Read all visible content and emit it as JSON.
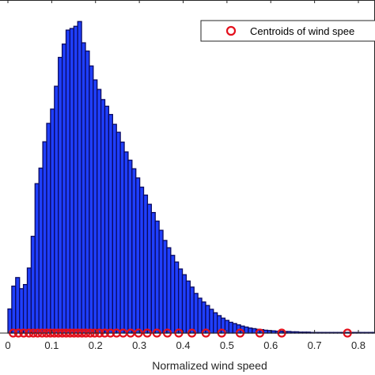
{
  "chart_data": {
    "type": "bar",
    "xlabel": "Normalized wind speed",
    "ylabel": "",
    "title": "",
    "xlim": [
      0,
      0.85
    ],
    "ylim": [
      0,
      1
    ],
    "x_ticks": [
      "0",
      "0.1",
      "0.2",
      "0.3",
      "0.4",
      "0.5",
      "0.6",
      "0.7",
      "0.8"
    ],
    "grid": false,
    "legend_position": "top-right",
    "bin_width": 0.00885,
    "bin_start": 0.0,
    "histogram_values": [
      0.076,
      0.148,
      0.175,
      0.14,
      0.153,
      0.205,
      0.305,
      0.471,
      0.52,
      0.603,
      0.661,
      0.706,
      0.778,
      0.869,
      0.911,
      0.955,
      0.96,
      0.967,
      0.982,
      0.915,
      0.889,
      0.842,
      0.798,
      0.768,
      0.736,
      0.715,
      0.689,
      0.658,
      0.633,
      0.602,
      0.571,
      0.545,
      0.518,
      0.489,
      0.46,
      0.435,
      0.406,
      0.38,
      0.353,
      0.324,
      0.292,
      0.269,
      0.245,
      0.224,
      0.202,
      0.184,
      0.164,
      0.145,
      0.125,
      0.11,
      0.098,
      0.087,
      0.075,
      0.064,
      0.055,
      0.047,
      0.04,
      0.034,
      0.03,
      0.026,
      0.022,
      0.019,
      0.016,
      0.014,
      0.012,
      0.011,
      0.009,
      0.008,
      0.007,
      0.006,
      0.006,
      0.005,
      0.005,
      0.004,
      0.004,
      0.003,
      0.003,
      0.003,
      0.002,
      0.002,
      0.002,
      0.002,
      0.002,
      0.002,
      0.002,
      0.002,
      0.002,
      0.002,
      0.002,
      0.002,
      0.002,
      0.002,
      0.002,
      0.002,
      0.002,
      0.002
    ],
    "series": [
      {
        "name": "Centroids of wind spee",
        "type": "scatter",
        "marker": "circle-open",
        "x": [
          0.012,
          0.024,
          0.036,
          0.048,
          0.058,
          0.068,
          0.078,
          0.088,
          0.097,
          0.106,
          0.115,
          0.124,
          0.133,
          0.142,
          0.151,
          0.16,
          0.169,
          0.178,
          0.188,
          0.198,
          0.209,
          0.221,
          0.234,
          0.248,
          0.263,
          0.28,
          0.298,
          0.318,
          0.34,
          0.364,
          0.39,
          0.42,
          0.452,
          0.488,
          0.53,
          0.575,
          0.625,
          0.775
        ],
        "y": [
          0,
          0,
          0,
          0,
          0,
          0,
          0,
          0,
          0,
          0,
          0,
          0,
          0,
          0,
          0,
          0,
          0,
          0,
          0,
          0,
          0,
          0,
          0,
          0,
          0,
          0,
          0,
          0,
          0,
          0,
          0,
          0,
          0,
          0,
          0,
          0,
          0,
          0
        ]
      }
    ],
    "colors": {
      "bar_fill": "#1f3fff",
      "bar_edge": "#0a0a60",
      "marker": "#e4101c",
      "axis": "#262626"
    }
  }
}
